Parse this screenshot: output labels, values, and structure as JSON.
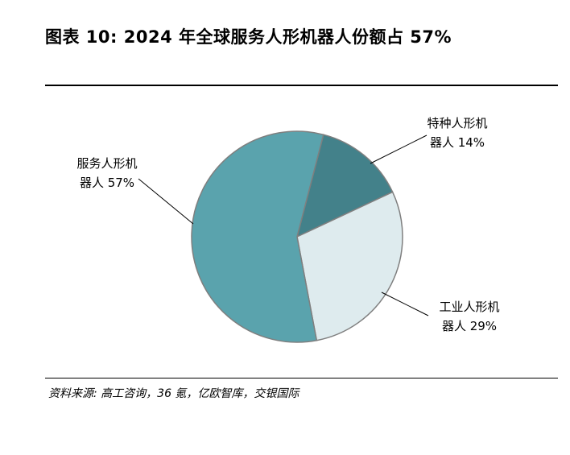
{
  "title": "图表 10: 2024 年全球服务人形机器人份额占 57%",
  "source": "资料来源: 高工咨询，36 氪，亿欧智库，交银国际",
  "chart_data": {
    "type": "pie",
    "title": "",
    "slices": [
      {
        "label_line1": "特种人形机",
        "label_line2": "器人 14%",
        "name": "特种人形机器人",
        "value": 14,
        "color": "#43818a"
      },
      {
        "label_line1": "工业人形机",
        "label_line2": "器人 29%",
        "name": "工业人形机器人",
        "value": 29,
        "color": "#deebee"
      },
      {
        "label_line1": "服务人形机",
        "label_line2": "器人 57%",
        "name": "服务人形机器人",
        "value": 57,
        "color": "#5aa3ad"
      }
    ],
    "start_angle_deg": 14.5,
    "legend": "none"
  }
}
